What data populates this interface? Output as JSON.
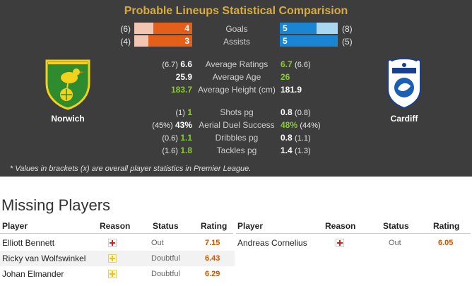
{
  "header": {
    "title": "Probable Lineups Statistical Comparision"
  },
  "teams": {
    "home": {
      "name": "Norwich",
      "color": "#e35f1a"
    },
    "away": {
      "name": "Cardiff",
      "color": "#1a86d3"
    }
  },
  "bar_stats": [
    {
      "label": "Goals",
      "home_bracket": "(6)",
      "home_value": "4",
      "home_fraction": 0.67,
      "away_value": "5",
      "away_bracket": "(8)",
      "away_fraction": 0.63
    },
    {
      "label": "Assists",
      "home_bracket": "(4)",
      "home_value": "3",
      "home_fraction": 0.75,
      "away_value": "5",
      "away_bracket": "(5)",
      "away_fraction": 1.0
    }
  ],
  "stats": [
    {
      "label": "Average Ratings",
      "home_bracket": "(6.7)",
      "home_value": "6.6",
      "home_green": false,
      "away_value": "6.7",
      "away_green": true,
      "away_bracket": "(6.6)"
    },
    {
      "label": "Average Age",
      "home_bracket": "",
      "home_value": "25.9",
      "home_green": false,
      "away_value": "26",
      "away_green": true,
      "away_bracket": ""
    },
    {
      "label": "Average Height (cm)",
      "home_bracket": "",
      "home_value": "183.7",
      "home_green": true,
      "away_value": "181.9",
      "away_green": false,
      "away_bracket": ""
    },
    {
      "label": "Shots pg",
      "home_bracket": "(1)",
      "home_value": "1",
      "home_green": true,
      "away_value": "0.8",
      "away_green": false,
      "away_bracket": "(0.8)"
    },
    {
      "label": "Aerial Duel Success",
      "home_bracket": "(45%)",
      "home_value": "43%",
      "home_green": false,
      "away_value": "48%",
      "away_green": true,
      "away_bracket": "(44%)"
    },
    {
      "label": "Dribbles pg",
      "home_bracket": "(0.6)",
      "home_value": "1.1",
      "home_green": true,
      "away_value": "0.8",
      "away_green": false,
      "away_bracket": "(1.1)"
    },
    {
      "label": "Tackles pg",
      "home_bracket": "(1.6)",
      "home_value": "1.8",
      "home_green": true,
      "away_value": "1.4",
      "away_green": false,
      "away_bracket": "(1.3)"
    }
  ],
  "footnote": "* Values in brackets (x) are overall player statistics in Premier League.",
  "missing": {
    "title": "Missing Players",
    "columns": {
      "player": "Player",
      "reason": "Reason",
      "status": "Status",
      "rating": "Rating"
    },
    "home": [
      {
        "player": "Elliott Bennett",
        "reason": "injury",
        "status": "Out",
        "rating": "7.15"
      },
      {
        "player": "Ricky van Wolfswinkel",
        "reason": "doubtful",
        "status": "Doubtful",
        "rating": "6.43"
      },
      {
        "player": "Johan Elmander",
        "reason": "doubtful",
        "status": "Doubtful",
        "rating": "6.29"
      }
    ],
    "away": [
      {
        "player": "Andreas Cornelius",
        "reason": "injury",
        "status": "Out",
        "rating": "6.05"
      }
    ]
  }
}
